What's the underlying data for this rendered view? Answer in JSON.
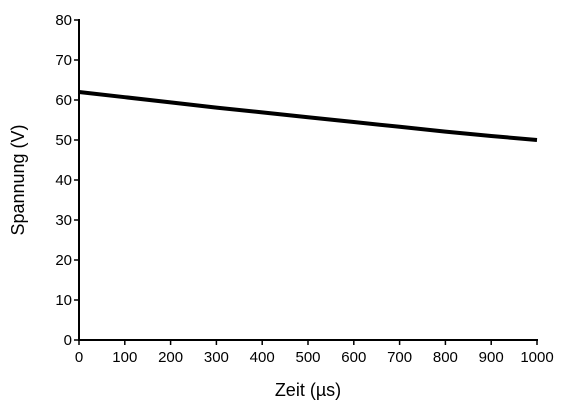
{
  "chart_data": {
    "type": "line",
    "title": "",
    "xlabel": "Zeit (µs)",
    "ylabel": "Spannung (V)",
    "xlim": [
      0,
      1000
    ],
    "ylim": [
      0,
      80
    ],
    "x_ticks": [
      0,
      100,
      200,
      300,
      400,
      500,
      600,
      700,
      800,
      900,
      1000
    ],
    "y_ticks": [
      0,
      10,
      20,
      30,
      40,
      50,
      60,
      70,
      80
    ],
    "grid": false,
    "series": [
      {
        "color": "#000000",
        "x": [
          0,
          100,
          200,
          300,
          400,
          500,
          600,
          700,
          800,
          900,
          1000
        ],
        "y": [
          62,
          60.7,
          59.4,
          58.1,
          56.9,
          55.7,
          54.5,
          53.3,
          52.1,
          51.0,
          50.0
        ]
      }
    ]
  }
}
